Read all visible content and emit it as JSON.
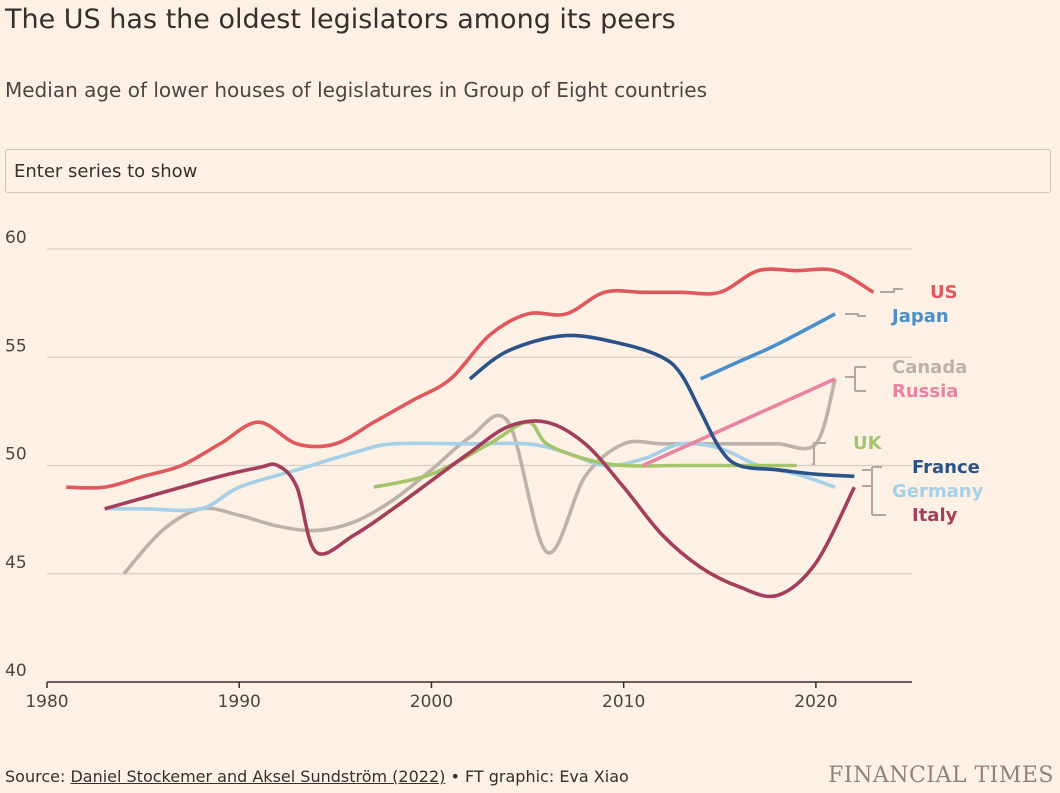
{
  "header": {
    "title": "The US has the oldest legislators among its peers",
    "subtitle": "Median age of lower houses of legislatures in Group of Eight countries"
  },
  "search": {
    "placeholder": "Enter series to show"
  },
  "footer": {
    "source_prefix": "Source: ",
    "source_link": "Daniel Stockemer and Aksel Sundström (2022)",
    "credit": " • FT graphic: Eva Xiao",
    "brand": "FINANCIAL TIMES"
  },
  "chart_data": {
    "type": "line",
    "title": "The US has the oldest legislators among its peers",
    "subtitle": "Median age of lower houses of legislatures in Group of Eight countries",
    "xlim": [
      1980,
      2025
    ],
    "ylim": [
      40,
      60
    ],
    "xticks": [
      1980,
      1990,
      2000,
      2010,
      2020
    ],
    "yticks": [
      40,
      45,
      50,
      55,
      60
    ],
    "grid": true,
    "legend": "direct labels at right",
    "series": [
      {
        "name": "US",
        "color": "#e0585c",
        "x": [
          1981,
          1983,
          1985,
          1987,
          1989,
          1991,
          1993,
          1995,
          1997,
          1999,
          2001,
          2003,
          2005,
          2007,
          2009,
          2011,
          2013,
          2015,
          2017,
          2019,
          2021,
          2023
        ],
        "y": [
          49,
          49,
          49.5,
          50,
          51,
          52,
          51,
          51,
          52,
          53,
          54,
          56,
          57,
          57,
          58,
          58,
          58,
          58,
          59,
          59,
          59,
          58
        ]
      },
      {
        "name": "Japan",
        "color": "#4a8fcc",
        "x": [
          2014,
          2016,
          2018,
          2021
        ],
        "y": [
          54,
          54.8,
          55.6,
          57
        ]
      },
      {
        "name": "Canada",
        "color": "#bdb2a9",
        "x": [
          1984,
          1986,
          1988,
          1990,
          1992,
          1994,
          1996,
          1998,
          2000,
          2002,
          2004,
          2006,
          2008,
          2010,
          2012,
          2014,
          2016,
          2018,
          2020,
          2021
        ],
        "y": [
          45,
          47,
          48,
          47.7,
          47.2,
          47,
          47.4,
          48.4,
          49.8,
          51.3,
          52,
          46,
          49.5,
          51,
          51,
          51,
          51,
          51,
          51,
          54
        ]
      },
      {
        "name": "Russia",
        "color": "#ea83a2",
        "x": [
          2011,
          2021
        ],
        "y": [
          50,
          54
        ]
      },
      {
        "name": "UK",
        "color": "#a6c46c",
        "x": [
          1997,
          2000,
          2003,
          2005,
          2006,
          2008,
          2010,
          2013,
          2016,
          2019
        ],
        "y": [
          49,
          49.6,
          51,
          52,
          51,
          50.3,
          50,
          50,
          50,
          50
        ]
      },
      {
        "name": "France",
        "color": "#2b538a",
        "x": [
          2002,
          2004,
          2007,
          2010,
          2012,
          2013,
          2014,
          2015,
          2016,
          2018,
          2020,
          2022
        ],
        "y": [
          54,
          55.3,
          56,
          55.6,
          55,
          54.2,
          52.5,
          50.8,
          50,
          49.8,
          49.6,
          49.5
        ]
      },
      {
        "name": "Germany",
        "color": "#a5d0e8",
        "x": [
          1983,
          1985,
          1988,
          1990,
          1993,
          1996,
          1998,
          2002,
          2005,
          2007,
          2009,
          2011,
          2013,
          2015,
          2017,
          2019,
          2021
        ],
        "y": [
          48,
          48,
          48,
          49,
          49.8,
          50.6,
          51,
          51,
          51,
          50.6,
          50,
          50.3,
          51,
          50.8,
          50,
          49.6,
          49
        ]
      },
      {
        "name": "Italy",
        "color": "#a33f5d",
        "x": [
          1983,
          1985,
          1987,
          1989,
          1991,
          1992,
          1993,
          1994,
          1996,
          1998,
          2000,
          2002,
          2004,
          2006,
          2008,
          2010,
          2012,
          2014,
          2016,
          2018,
          2020,
          2022
        ],
        "y": [
          48,
          48.5,
          49,
          49.5,
          49.9,
          50,
          49,
          46,
          46.8,
          48,
          49.3,
          50.6,
          51.8,
          52,
          51,
          49,
          46.8,
          45.3,
          44.4,
          44,
          45.5,
          49
        ]
      }
    ]
  }
}
